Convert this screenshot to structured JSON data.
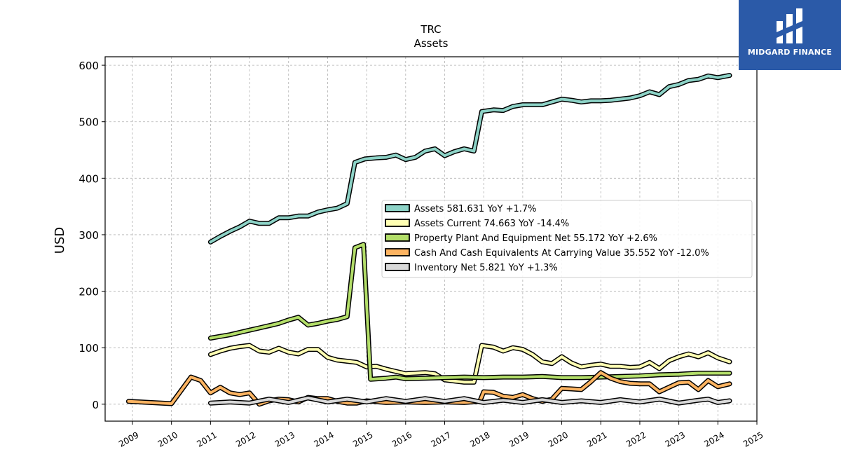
{
  "brand": {
    "name": "MIDGARD FINANCE",
    "color": "#2b5aa8",
    "icon": "midgard-logo-icon"
  },
  "chart_data": {
    "type": "line",
    "title": "TRC",
    "subtitle": "Assets",
    "ylabel": "USD",
    "xlabel": "",
    "xlim": [
      2008.3,
      2025.0
    ],
    "ylim": [
      -30,
      615
    ],
    "x_ticks": [
      "2009",
      "2010",
      "2011",
      "2012",
      "2013",
      "2014",
      "2015",
      "2016",
      "2017",
      "2018",
      "2019",
      "2020",
      "2021",
      "2022",
      "2023",
      "2024",
      "2025"
    ],
    "y_ticks": [
      0,
      100,
      200,
      300,
      400,
      500,
      600
    ],
    "grid": true,
    "legend_position": "center-right",
    "series": [
      {
        "name": "Assets",
        "legend_label": "Assets  581.631 YoY +1.7%",
        "color": "#8dd3c7",
        "points": [
          [
            2011.0,
            287
          ],
          [
            2011.25,
            297
          ],
          [
            2011.5,
            306
          ],
          [
            2011.75,
            314
          ],
          [
            2012.0,
            324
          ],
          [
            2012.25,
            320
          ],
          [
            2012.5,
            320
          ],
          [
            2012.75,
            330
          ],
          [
            2013.0,
            330
          ],
          [
            2013.25,
            333
          ],
          [
            2013.5,
            333
          ],
          [
            2013.75,
            340
          ],
          [
            2014.0,
            344
          ],
          [
            2014.25,
            347
          ],
          [
            2014.5,
            355
          ],
          [
            2014.7,
            428
          ],
          [
            2014.95,
            434
          ],
          [
            2015.25,
            436
          ],
          [
            2015.5,
            437
          ],
          [
            2015.75,
            441
          ],
          [
            2016.0,
            433
          ],
          [
            2016.25,
            437
          ],
          [
            2016.5,
            448
          ],
          [
            2016.75,
            452
          ],
          [
            2017.0,
            440
          ],
          [
            2017.25,
            447
          ],
          [
            2017.5,
            452
          ],
          [
            2017.75,
            448
          ],
          [
            2017.95,
            518
          ],
          [
            2018.25,
            521
          ],
          [
            2018.5,
            520
          ],
          [
            2018.75,
            527
          ],
          [
            2019.0,
            530
          ],
          [
            2019.25,
            530
          ],
          [
            2019.5,
            530
          ],
          [
            2019.75,
            535
          ],
          [
            2020.0,
            540
          ],
          [
            2020.25,
            538
          ],
          [
            2020.5,
            535
          ],
          [
            2020.75,
            537
          ],
          [
            2021.0,
            537
          ],
          [
            2021.25,
            538
          ],
          [
            2021.5,
            540
          ],
          [
            2021.75,
            542
          ],
          [
            2022.0,
            546
          ],
          [
            2022.25,
            553
          ],
          [
            2022.5,
            548
          ],
          [
            2022.75,
            562
          ],
          [
            2023.0,
            566
          ],
          [
            2023.25,
            573
          ],
          [
            2023.5,
            575
          ],
          [
            2023.75,
            581
          ],
          [
            2024.0,
            578
          ],
          [
            2024.3,
            582
          ]
        ]
      },
      {
        "name": "Assets Current",
        "legend_label": "Assets Current  74.663 YoY -14.4%",
        "color": "#ffffb3",
        "points": [
          [
            2011.0,
            88
          ],
          [
            2011.25,
            94
          ],
          [
            2011.5,
            99
          ],
          [
            2011.75,
            102
          ],
          [
            2012.0,
            104
          ],
          [
            2012.25,
            94
          ],
          [
            2012.5,
            92
          ],
          [
            2012.75,
            99
          ],
          [
            2013.0,
            92
          ],
          [
            2013.25,
            89
          ],
          [
            2013.5,
            97
          ],
          [
            2013.75,
            97
          ],
          [
            2014.0,
            83
          ],
          [
            2014.25,
            78
          ],
          [
            2014.5,
            76
          ],
          [
            2014.75,
            74
          ],
          [
            2015.0,
            66
          ],
          [
            2015.25,
            67
          ],
          [
            2015.5,
            62
          ],
          [
            2015.75,
            58
          ],
          [
            2016.0,
            54
          ],
          [
            2016.25,
            55
          ],
          [
            2016.5,
            56
          ],
          [
            2016.75,
            54
          ],
          [
            2017.0,
            43
          ],
          [
            2017.25,
            41
          ],
          [
            2017.5,
            39
          ],
          [
            2017.75,
            39
          ],
          [
            2017.95,
            104
          ],
          [
            2018.25,
            101
          ],
          [
            2018.5,
            94
          ],
          [
            2018.75,
            100
          ],
          [
            2019.0,
            97
          ],
          [
            2019.25,
            88
          ],
          [
            2019.5,
            75
          ],
          [
            2019.75,
            72
          ],
          [
            2020.0,
            84
          ],
          [
            2020.25,
            73
          ],
          [
            2020.5,
            66
          ],
          [
            2020.75,
            69
          ],
          [
            2021.0,
            71
          ],
          [
            2021.25,
            67
          ],
          [
            2021.5,
            67
          ],
          [
            2021.75,
            65
          ],
          [
            2022.0,
            66
          ],
          [
            2022.25,
            74
          ],
          [
            2022.5,
            63
          ],
          [
            2022.75,
            77
          ],
          [
            2023.0,
            84
          ],
          [
            2023.25,
            89
          ],
          [
            2023.5,
            84
          ],
          [
            2023.75,
            91
          ],
          [
            2024.0,
            82
          ],
          [
            2024.3,
            75
          ]
        ]
      },
      {
        "name": "Property Plant And Equipment Net",
        "legend_label": "Property Plant And Equipment Net  55.172 YoY +2.6%",
        "color": "#b3de69",
        "points": [
          [
            2011.0,
            117
          ],
          [
            2011.25,
            120
          ],
          [
            2011.5,
            123
          ],
          [
            2011.75,
            127
          ],
          [
            2012.0,
            131
          ],
          [
            2012.25,
            135
          ],
          [
            2012.5,
            139
          ],
          [
            2012.75,
            143
          ],
          [
            2013.0,
            149
          ],
          [
            2013.25,
            154
          ],
          [
            2013.5,
            140
          ],
          [
            2013.75,
            143
          ],
          [
            2014.0,
            147
          ],
          [
            2014.25,
            150
          ],
          [
            2014.5,
            155
          ],
          [
            2014.7,
            277
          ],
          [
            2014.92,
            283
          ],
          [
            2015.1,
            44
          ],
          [
            2015.5,
            46
          ],
          [
            2015.75,
            48
          ],
          [
            2016.0,
            45
          ],
          [
            2016.5,
            46
          ],
          [
            2017.0,
            47
          ],
          [
            2017.5,
            48
          ],
          [
            2018.0,
            47
          ],
          [
            2018.5,
            48
          ],
          [
            2019.0,
            48
          ],
          [
            2019.5,
            49
          ],
          [
            2020.0,
            47
          ],
          [
            2020.5,
            47
          ],
          [
            2021.0,
            48
          ],
          [
            2021.5,
            49
          ],
          [
            2022.0,
            50
          ],
          [
            2022.5,
            52
          ],
          [
            2023.0,
            53
          ],
          [
            2023.5,
            55
          ],
          [
            2024.0,
            55
          ],
          [
            2024.3,
            55
          ]
        ]
      },
      {
        "name": "Cash And Cash Equivalents At Carrying Value",
        "legend_label": "Cash And Cash Equivalents At Carrying Value  35.552 YoY -12.0%",
        "color": "#fdb462",
        "points": [
          [
            2008.9,
            5
          ],
          [
            2010.0,
            1
          ],
          [
            2010.5,
            48
          ],
          [
            2010.75,
            42
          ],
          [
            2011.0,
            20
          ],
          [
            2011.25,
            30
          ],
          [
            2011.5,
            20
          ],
          [
            2011.75,
            17
          ],
          [
            2012.0,
            20
          ],
          [
            2012.25,
            0
          ],
          [
            2012.5,
            6
          ],
          [
            2012.75,
            9
          ],
          [
            2013.0,
            8
          ],
          [
            2013.25,
            4
          ],
          [
            2013.5,
            12
          ],
          [
            2013.75,
            10
          ],
          [
            2014.0,
            10
          ],
          [
            2014.25,
            5
          ],
          [
            2014.5,
            2
          ],
          [
            2014.75,
            2
          ],
          [
            2015.0,
            6
          ],
          [
            2015.5,
            3
          ],
          [
            2016.0,
            4
          ],
          [
            2016.5,
            3
          ],
          [
            2017.0,
            4
          ],
          [
            2017.5,
            3
          ],
          [
            2017.9,
            5
          ],
          [
            2018.0,
            22
          ],
          [
            2018.25,
            21
          ],
          [
            2018.5,
            14
          ],
          [
            2018.75,
            12
          ],
          [
            2019.0,
            17
          ],
          [
            2019.25,
            10
          ],
          [
            2019.5,
            5
          ],
          [
            2019.75,
            9
          ],
          [
            2020.0,
            28
          ],
          [
            2020.25,
            27
          ],
          [
            2020.5,
            26
          ],
          [
            2020.75,
            40
          ],
          [
            2021.0,
            56
          ],
          [
            2021.25,
            46
          ],
          [
            2021.5,
            40
          ],
          [
            2021.75,
            37
          ],
          [
            2022.0,
            36
          ],
          [
            2022.25,
            36
          ],
          [
            2022.5,
            22
          ],
          [
            2022.75,
            30
          ],
          [
            2023.0,
            38
          ],
          [
            2023.25,
            39
          ],
          [
            2023.5,
            26
          ],
          [
            2023.75,
            42
          ],
          [
            2024.0,
            31
          ],
          [
            2024.3,
            36
          ]
        ]
      },
      {
        "name": "Inventory Net",
        "legend_label": "Inventory Net  5.821 YoY +1.3%",
        "color": "#d9d9d9",
        "points": [
          [
            2011.0,
            2
          ],
          [
            2011.5,
            4
          ],
          [
            2012.0,
            2
          ],
          [
            2012.5,
            9
          ],
          [
            2013.0,
            3
          ],
          [
            2013.5,
            11
          ],
          [
            2014.0,
            4
          ],
          [
            2014.5,
            9
          ],
          [
            2015.0,
            4
          ],
          [
            2015.5,
            10
          ],
          [
            2016.0,
            5
          ],
          [
            2016.5,
            10
          ],
          [
            2017.0,
            5
          ],
          [
            2017.5,
            10
          ],
          [
            2018.0,
            3
          ],
          [
            2018.5,
            7
          ],
          [
            2019.0,
            3
          ],
          [
            2019.5,
            8
          ],
          [
            2020.0,
            3
          ],
          [
            2020.5,
            6
          ],
          [
            2021.0,
            3
          ],
          [
            2021.5,
            8
          ],
          [
            2022.0,
            4
          ],
          [
            2022.5,
            9
          ],
          [
            2023.0,
            2
          ],
          [
            2023.5,
            7
          ],
          [
            2023.75,
            9
          ],
          [
            2024.0,
            3
          ],
          [
            2024.3,
            6
          ]
        ]
      }
    ]
  }
}
